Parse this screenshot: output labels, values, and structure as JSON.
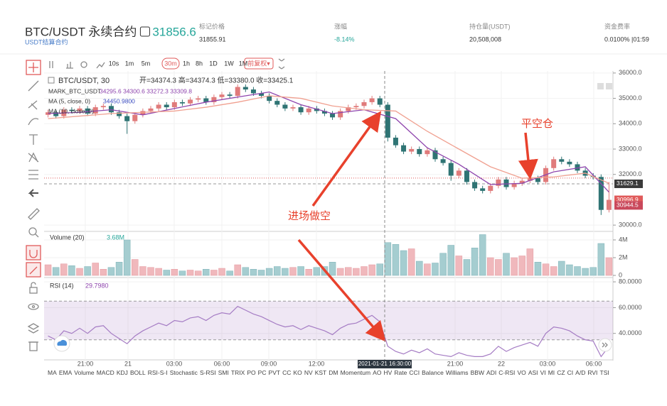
{
  "header": {
    "symbol": "BTC/USDT 永续合约",
    "price": 31856.6,
    "subtitle": "USDT结算合约",
    "stats": [
      {
        "label": "标记价格",
        "value": "31855.91"
      },
      {
        "label": "涨幅",
        "value": "-8.14%"
      },
      {
        "label": "持仓量(USDT)",
        "value": "20,508,008"
      },
      {
        "label": "资金费率",
        "value": "0.0100% |01:59"
      }
    ]
  },
  "toolbar": {
    "intervals": [
      "10s",
      "1m",
      "5m",
      "30m",
      "1h",
      "8h",
      "1D",
      "1W",
      "1M"
    ],
    "selected": "30m",
    "adjust": "前复权▾"
  },
  "chart": {
    "legend": {
      "symbol": "BTC/USDT, 30",
      "ohlc": "开=34374.3  高=34374.3  低=33380.0  收=33425.1",
      "mark": "MARK_BTC_USDT",
      "mark_values": "34295.6  34300.6  33272.3  33309.8",
      "ma5": "MA (5, close, 0)",
      "ma5_value": "34450.9800",
      "ma10": "MA (10, close, 0)"
    },
    "ylim": [
      29780,
      36080
    ],
    "yticks": [
      {
        "value": 36000,
        "label": "36000.0"
      },
      {
        "value": 35000,
        "label": "35000.0"
      },
      {
        "value": 34000,
        "label": "34000.0"
      },
      {
        "value": 33000,
        "label": "33000.0"
      },
      {
        "value": 32000,
        "label": "32000.0"
      },
      {
        "value": 30000,
        "label": "30000.0"
      }
    ],
    "up_color": "#e07b7b",
    "down_color": "#2f7474",
    "candles": {
      "open": [
        34350,
        34450,
        34300,
        34550,
        34500,
        34600,
        34400,
        34650,
        34700,
        34450,
        34300,
        34100,
        34350,
        34500,
        34600,
        34750,
        34650,
        34850,
        34800,
        34950,
        35000,
        34850,
        35050,
        35150,
        35100,
        35450,
        35350,
        35200,
        35100,
        34900,
        34750,
        34600,
        34650,
        34450,
        34600,
        34500,
        34400,
        34250,
        34500,
        34650,
        34700,
        34850,
        35000,
        34750,
        33450,
        33150,
        32900,
        33000,
        32800,
        32950,
        32600,
        32450,
        31950,
        32150,
        31700,
        31450,
        31350,
        31550,
        31800,
        31500,
        31650,
        31750,
        31850,
        31700,
        32250,
        32600,
        32500,
        32400,
        32150,
        31950,
        31900,
        30600
      ],
      "high": [
        34550,
        34550,
        34650,
        34650,
        34700,
        34700,
        34750,
        34800,
        34800,
        34550,
        34400,
        34450,
        34600,
        34700,
        34850,
        34850,
        34950,
        34950,
        35050,
        35100,
        35100,
        35150,
        35250,
        35250,
        35550,
        35550,
        35450,
        35300,
        35200,
        35000,
        34850,
        34750,
        34750,
        34700,
        34700,
        34600,
        34500,
        34600,
        34750,
        34800,
        34950,
        35100,
        35100,
        34850,
        33550,
        33250,
        33100,
        33100,
        33050,
        33050,
        32700,
        32550,
        32250,
        32250,
        31800,
        31550,
        31650,
        31900,
        31900,
        31750,
        31850,
        31950,
        31950,
        32350,
        32700,
        32700,
        32600,
        32500,
        32250,
        32050,
        32000,
        31700
      ],
      "low": [
        34250,
        34200,
        34200,
        34400,
        34400,
        34300,
        34300,
        34550,
        34350,
        34200,
        33600,
        34000,
        34250,
        34400,
        34500,
        34550,
        34550,
        34700,
        34700,
        34850,
        34750,
        34750,
        34950,
        35000,
        35000,
        35250,
        35100,
        35000,
        34800,
        34650,
        34500,
        34500,
        34350,
        34350,
        34400,
        34300,
        34150,
        34150,
        34400,
        34550,
        34600,
        34750,
        34650,
        33300,
        33050,
        32800,
        32800,
        32700,
        32700,
        32500,
        32350,
        31750,
        31850,
        31600,
        31350,
        31250,
        31250,
        31450,
        31400,
        31400,
        31550,
        31650,
        31600,
        31600,
        32150,
        32400,
        32300,
        32050,
        31850,
        31800,
        30400,
        30500
      ],
      "close": [
        34450,
        34300,
        34550,
        34500,
        34600,
        34400,
        34650,
        34700,
        34450,
        34300,
        34100,
        34350,
        34500,
        34600,
        34750,
        34650,
        34850,
        34800,
        34950,
        35000,
        34850,
        35050,
        35150,
        35100,
        35450,
        35350,
        35200,
        35100,
        34900,
        34750,
        34600,
        34650,
        34450,
        34600,
        34500,
        34400,
        34250,
        34500,
        34650,
        34700,
        34850,
        35000,
        34750,
        33450,
        33150,
        32900,
        33000,
        32800,
        32950,
        32600,
        32450,
        31950,
        32150,
        31700,
        31450,
        31350,
        31550,
        31800,
        31500,
        31650,
        31750,
        31850,
        31700,
        32250,
        32600,
        32500,
        32400,
        32150,
        31950,
        31900,
        30600,
        30997
      ]
    },
    "ma_lines": [
      {
        "color": "#8e44ad",
        "x": [
          0,
          4,
          8,
          12,
          16,
          20,
          24,
          28,
          32,
          36,
          40,
          44,
          48,
          52,
          56,
          60,
          64,
          68,
          71
        ],
        "values": [
          34400,
          34450,
          34550,
          34350,
          34600,
          34850,
          35050,
          35250,
          34750,
          34400,
          34550,
          34200,
          33050,
          32400,
          31600,
          31650,
          32100,
          32300,
          31300
        ]
      },
      {
        "color": "#f0a090",
        "x": [
          0,
          4,
          8,
          12,
          16,
          20,
          24,
          28,
          32,
          36,
          40,
          44,
          48,
          52,
          56,
          60,
          64,
          68,
          71
        ],
        "values": [
          34200,
          34300,
          34400,
          34450,
          34500,
          34650,
          34850,
          35100,
          35000,
          34700,
          34550,
          34500,
          33700,
          33000,
          32300,
          31850,
          31900,
          32050,
          31650
        ]
      }
    ],
    "price_tags": [
      {
        "value": 31629.1,
        "color": "#3a3a3a"
      },
      {
        "value": 30996.9,
        "color": "#e05a5a"
      },
      {
        "value": 30944.5,
        "color": "#c9485b"
      }
    ],
    "time_labels": [
      "21:00",
      "21",
      "03:00",
      "06:00",
      "09:00",
      "12:00",
      "21:00",
      "22",
      "03:00",
      "06:00"
    ],
    "crosshair": "2021-01-21 16:30:00"
  },
  "volume": {
    "title": "Volume (20)",
    "value": "3.68M",
    "ylim": [
      0,
      4.8
    ],
    "yticks": [
      {
        "value": 4,
        "label": "4M"
      },
      {
        "value": 2,
        "label": "2M"
      },
      0
    ],
    "values": [
      1.2,
      0.9,
      1.3,
      1.1,
      0.8,
      1.0,
      1.4,
      0.7,
      0.9,
      1.5,
      4.0,
      1.8,
      1.0,
      0.9,
      0.8,
      0.6,
      0.7,
      0.5,
      0.6,
      0.5,
      0.7,
      0.6,
      0.8,
      0.5,
      1.2,
      0.9,
      0.7,
      0.6,
      0.8,
      1.0,
      0.8,
      0.9,
      1.0,
      0.7,
      0.9,
      1.0,
      1.5,
      0.8,
      0.9,
      0.8,
      1.0,
      1.2,
      1.3,
      3.7,
      3.5,
      2.8,
      3.0,
      1.6,
      1.3,
      1.4,
      2.5,
      3.4,
      2.2,
      1.8,
      3.1,
      4.6,
      2.0,
      1.8,
      2.5,
      2.0,
      2.2,
      3.0,
      1.5,
      1.3,
      1.0,
      1.6,
      1.2,
      1.0,
      0.8,
      0.9,
      3.6,
      2.0
    ]
  },
  "rsi": {
    "title": "RSI (14)",
    "value": "29.7980",
    "ylim": [
      20,
      82.8
    ],
    "yticks": [
      {
        "value": 80,
        "label": "80.0000"
      },
      {
        "value": 60,
        "label": "60.0000"
      },
      {
        "value": 40,
        "label": "40.0000"
      }
    ],
    "band": [
      35,
      65
    ],
    "color": "#a57cc4",
    "values": [
      38,
      35,
      42,
      40,
      44,
      40,
      45,
      46,
      40,
      36,
      32,
      38,
      42,
      45,
      48,
      46,
      50,
      49,
      52,
      53,
      50,
      54,
      56,
      55,
      61,
      58,
      55,
      53,
      50,
      47,
      45,
      46,
      43,
      46,
      44,
      42,
      39,
      44,
      47,
      48,
      51,
      54,
      49,
      30,
      26,
      24,
      27,
      25,
      28,
      24,
      23,
      22,
      25,
      23,
      22,
      22,
      24,
      30,
      26,
      29,
      31,
      33,
      30,
      40,
      45,
      44,
      42,
      38,
      35,
      34,
      22,
      30
    ]
  },
  "annotations": [
    "平空仓",
    "进场做空"
  ],
  "indicators": [
    "MA",
    "EMA",
    "Volume",
    "MACD",
    "KDJ",
    "BOLL",
    "RSI-S-I",
    "Stochastic",
    "S-RSI",
    "SMI",
    "TRIX",
    "PO",
    "PC",
    "PVT",
    "CC",
    "KO",
    "NV",
    "KST",
    "DM",
    "Momentum",
    "AO",
    "HV",
    "Rate",
    "CCI",
    "Balance",
    "Williams",
    "BBW",
    "ADI",
    "C-RSI",
    "VO",
    "ASI",
    "VI",
    "MI",
    "CZ",
    "CI",
    "A/D",
    "RVI",
    "TSI"
  ]
}
